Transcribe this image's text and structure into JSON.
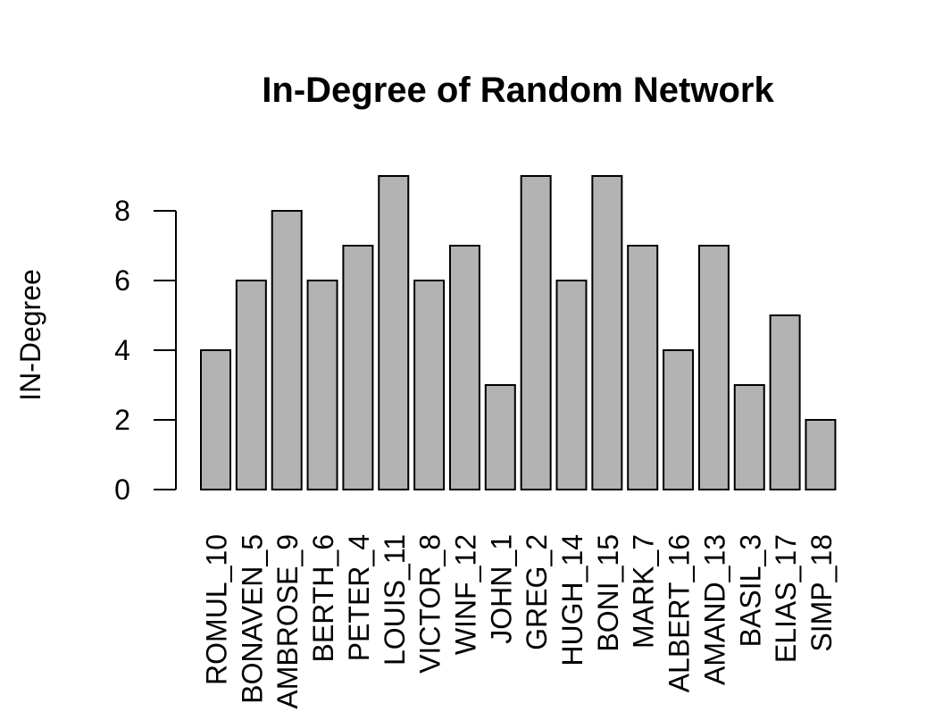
{
  "chart_data": {
    "type": "bar",
    "title": "In-Degree of Random Network",
    "xlabel": "",
    "ylabel": "IN-Degree",
    "ylim": [
      0,
      9
    ],
    "yticks": [
      0,
      2,
      4,
      6,
      8
    ],
    "categories": [
      "ROMUL_10",
      "BONAVEN_5",
      "AMBROSE_9",
      "BERTH_6",
      "PETER_4",
      "LOUIS_11",
      "VICTOR_8",
      "WINF_12",
      "JOHN_1",
      "GREG_2",
      "HUGH_14",
      "BONI_15",
      "MARK_7",
      "ALBERT_16",
      "AMAND_13",
      "BASIL_3",
      "ELIAS_17",
      "SIMP_18"
    ],
    "values": [
      4,
      6,
      8,
      6,
      7,
      9,
      6,
      7,
      3,
      9,
      6,
      9,
      7,
      4,
      7,
      3,
      5,
      2
    ],
    "bar_color": "#b3b3b3",
    "grid": false,
    "legend": "none"
  }
}
